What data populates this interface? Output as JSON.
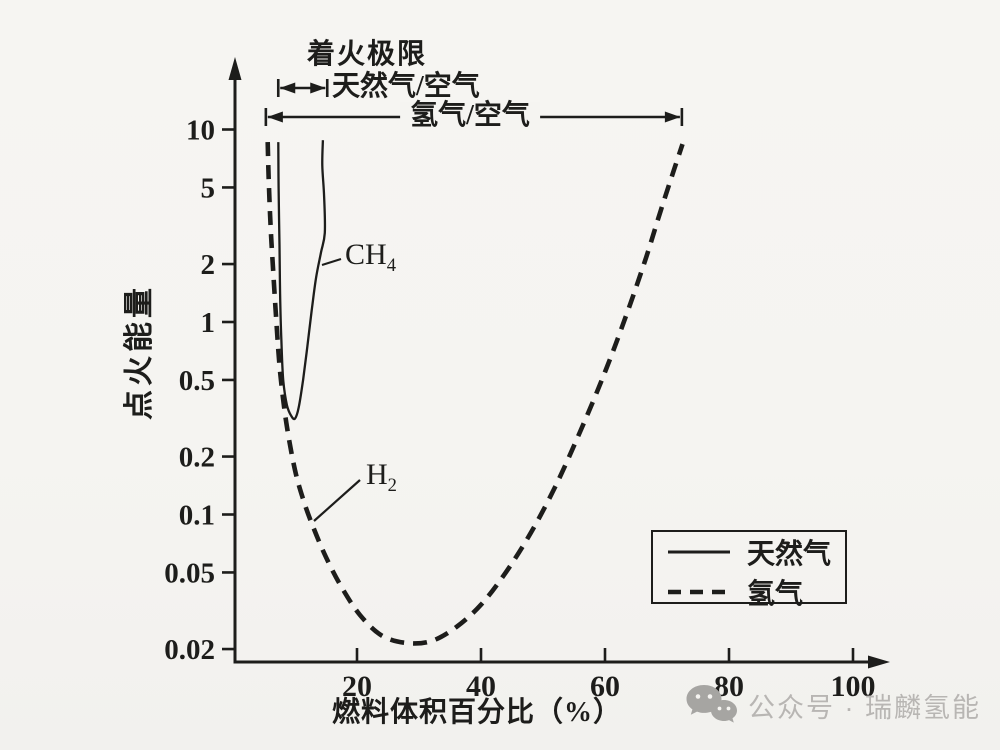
{
  "page": {
    "background": "#f5f4f1",
    "ink": "#1d1d1b"
  },
  "chart_data": {
    "type": "line",
    "xlabel": "燃料体积百分比（%）",
    "ylabel": "点火能量",
    "x_scale": "linear",
    "y_scale": "log",
    "xlim": [
      0,
      105
    ],
    "ylim": [
      0.017,
      15
    ],
    "x_ticks": [
      20,
      40,
      60,
      80,
      100
    ],
    "y_ticks": [
      "10",
      "5",
      "2",
      "1",
      "0.5",
      "0.2",
      "0.1",
      "0.05",
      "0.02"
    ],
    "grid": false,
    "legend_position": "lower right",
    "series": [
      {
        "name": "天然气",
        "line": "solid",
        "curve_label": {
          "text": "CH",
          "sub": "4"
        },
        "points": [
          [
            7.3,
            8.6
          ],
          [
            7.35,
            5.0
          ],
          [
            7.5,
            2.5
          ],
          [
            7.6,
            1.4
          ],
          [
            7.8,
            0.8
          ],
          [
            8.1,
            0.5
          ],
          [
            8.7,
            0.37
          ],
          [
            9.4,
            0.325
          ],
          [
            10.0,
            0.315
          ],
          [
            10.6,
            0.36
          ],
          [
            11.3,
            0.5
          ],
          [
            12.0,
            0.75
          ],
          [
            12.7,
            1.15
          ],
          [
            13.4,
            1.7
          ],
          [
            14.2,
            2.3
          ],
          [
            14.8,
            2.9
          ],
          [
            14.7,
            4.5
          ],
          [
            14.4,
            6.5
          ],
          [
            14.5,
            8.8
          ]
        ]
      },
      {
        "name": "氢气",
        "line": "dashed",
        "curve_label": {
          "text": "H",
          "sub": "2"
        },
        "points": [
          [
            5.6,
            8.6
          ],
          [
            5.8,
            5.0
          ],
          [
            6.1,
            3.0
          ],
          [
            6.5,
            1.8
          ],
          [
            7.0,
            1.0
          ],
          [
            7.6,
            0.55
          ],
          [
            8.6,
            0.3
          ],
          [
            10.0,
            0.17
          ],
          [
            11.5,
            0.115
          ],
          [
            13.0,
            0.085
          ],
          [
            15.0,
            0.06
          ],
          [
            17.5,
            0.042
          ],
          [
            20.5,
            0.03
          ],
          [
            24.0,
            0.0235
          ],
          [
            28.0,
            0.0215
          ],
          [
            32.0,
            0.022
          ],
          [
            36.0,
            0.026
          ],
          [
            40.0,
            0.034
          ],
          [
            44.0,
            0.05
          ],
          [
            48.0,
            0.08
          ],
          [
            52.0,
            0.14
          ],
          [
            56.0,
            0.27
          ],
          [
            60.0,
            0.55
          ],
          [
            63.5,
            1.1
          ],
          [
            66.5,
            2.1
          ],
          [
            69.0,
            3.8
          ],
          [
            71.0,
            6.0
          ],
          [
            72.5,
            8.4
          ]
        ]
      }
    ],
    "ranges": {
      "title": "着火极限",
      "items": [
        {
          "label": "天然气/空气",
          "from": 7.3,
          "to": 15.2,
          "label_position": "right"
        },
        {
          "label": "氢气/空气",
          "from": 5.3,
          "to": 72.4,
          "label_position": "center"
        }
      ]
    }
  },
  "watermark": {
    "text": "公众号 · 瑞麟氢能",
    "icon": "wechat-icon",
    "color": "#b8b6b3"
  }
}
